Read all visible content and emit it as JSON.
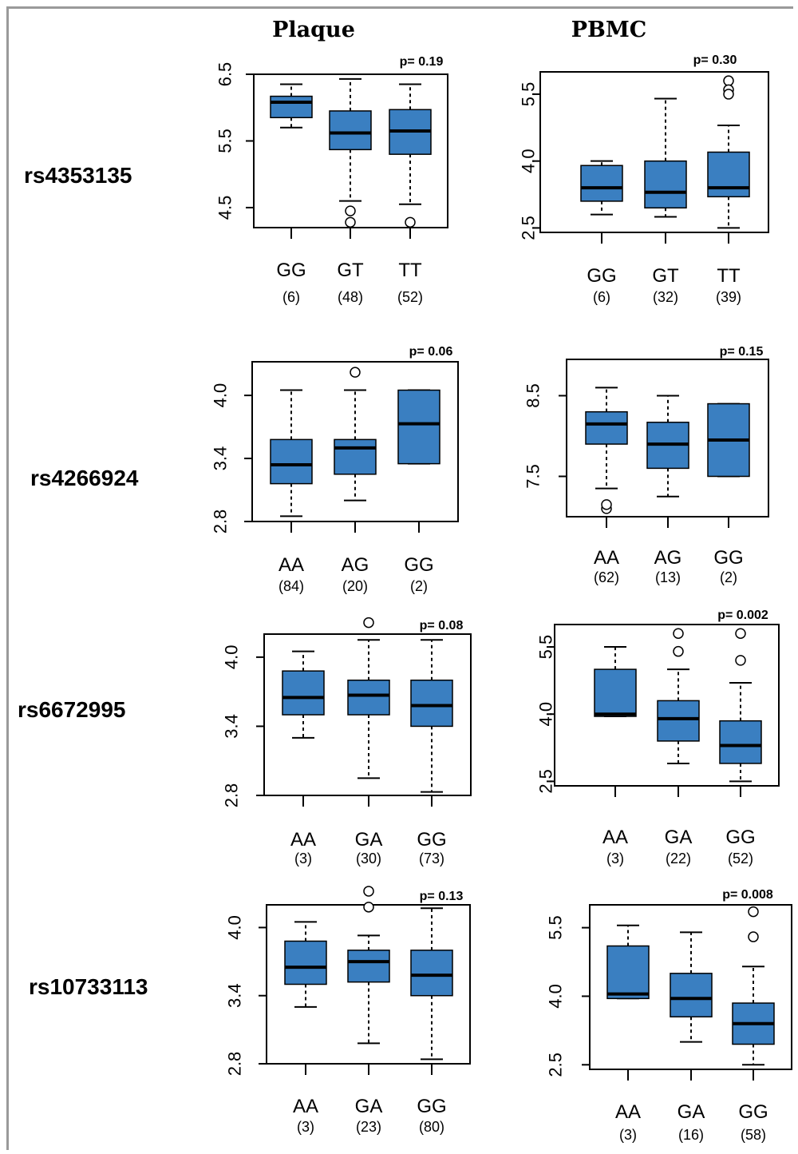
{
  "columns": [
    "Plaque",
    "PBMC"
  ],
  "rows": [
    "rs4353135",
    "rs4266924",
    "rs6672995",
    "rs10733113"
  ],
  "box_color": "#3a7fc1",
  "chart_data": [
    {
      "type": "box",
      "row": "rs4353135",
      "column": "Plaque",
      "p": "p= 0.19",
      "ylim": [
        4.2,
        6.5
      ],
      "yticks": [
        "4.5",
        "5.5",
        "6.5"
      ],
      "groups": [
        {
          "label": "GG",
          "n": "(6)",
          "min": 5.7,
          "q1": 5.85,
          "median": 6.08,
          "q3": 6.17,
          "max": 6.35,
          "outliers": []
        },
        {
          "label": "GT",
          "n": "(48)",
          "min": 4.6,
          "q1": 5.37,
          "median": 5.62,
          "q3": 5.95,
          "max": 6.43,
          "outliers": [
            4.45,
            4.28
          ]
        },
        {
          "label": "TT",
          "n": "(52)",
          "min": 4.55,
          "q1": 5.3,
          "median": 5.65,
          "q3": 5.97,
          "max": 6.35,
          "outliers": [
            4.28
          ]
        }
      ]
    },
    {
      "type": "box",
      "row": "rs4353135",
      "column": "PBMC",
      "p": "p= 0.30",
      "ylim": [
        2.4,
        6.0
      ],
      "yticks": [
        "2.5",
        "4.0",
        "5.5"
      ],
      "groups": [
        {
          "label": "GG",
          "n": "(6)",
          "min": 2.8,
          "q1": 3.1,
          "median": 3.4,
          "q3": 3.9,
          "max": 4.0,
          "outliers": []
        },
        {
          "label": "GT",
          "n": "(32)",
          "min": 2.75,
          "q1": 2.95,
          "median": 3.3,
          "q3": 4.0,
          "max": 5.4,
          "outliers": []
        },
        {
          "label": "TT",
          "n": "(39)",
          "min": 2.5,
          "q1": 3.2,
          "median": 3.4,
          "q3": 4.2,
          "max": 4.8,
          "outliers": [
            5.8,
            5.6,
            5.5
          ]
        }
      ]
    },
    {
      "type": "box",
      "row": "rs4266924",
      "column": "Plaque",
      "p": "p= 0.06",
      "ylim": [
        2.8,
        4.32
      ],
      "yticks": [
        "2.8",
        "3.4",
        "4.0"
      ],
      "groups": [
        {
          "label": "AA",
          "n": "(84)",
          "min": 2.85,
          "q1": 3.16,
          "median": 3.34,
          "q3": 3.58,
          "max": 4.05,
          "outliers": []
        },
        {
          "label": "AG",
          "n": "(20)",
          "min": 3.0,
          "q1": 3.25,
          "median": 3.5,
          "q3": 3.58,
          "max": 4.05,
          "outliers": [
            4.22
          ]
        },
        {
          "label": "GG",
          "n": "(2)",
          "min": 3.35,
          "q1": 3.35,
          "median": 3.73,
          "q3": 4.05,
          "max": 4.05,
          "outliers": []
        }
      ]
    },
    {
      "type": "box",
      "row": "rs4266924",
      "column": "PBMC",
      "p": "p= 0.15",
      "ylim": [
        7.0,
        8.95
      ],
      "yticks": [
        "7.5",
        "8.5"
      ],
      "groups": [
        {
          "label": "AA",
          "n": "(62)",
          "min": 7.35,
          "q1": 7.9,
          "median": 8.15,
          "q3": 8.3,
          "max": 8.6,
          "outliers": [
            7.1,
            7.15
          ]
        },
        {
          "label": "AG",
          "n": "(13)",
          "min": 7.25,
          "q1": 7.6,
          "median": 7.9,
          "q3": 8.17,
          "max": 8.5,
          "outliers": []
        },
        {
          "label": "GG",
          "n": "(2)",
          "min": 7.5,
          "q1": 7.5,
          "median": 7.95,
          "q3": 8.4,
          "max": 8.4,
          "outliers": []
        }
      ]
    },
    {
      "type": "box",
      "row": "rs6672995",
      "column": "Plaque",
      "p": "p= 0.08",
      "ylim": [
        2.8,
        4.2
      ],
      "yticks": [
        "2.8",
        "3.4",
        "4.0"
      ],
      "groups": [
        {
          "label": "AA",
          "n": "(3)",
          "min": 3.3,
          "q1": 3.5,
          "median": 3.65,
          "q3": 3.88,
          "max": 4.05,
          "outliers": []
        },
        {
          "label": "GA",
          "n": "(30)",
          "min": 2.95,
          "q1": 3.5,
          "median": 3.67,
          "q3": 3.8,
          "max": 4.15,
          "outliers": [
            4.3
          ]
        },
        {
          "label": "GG",
          "n": "(73)",
          "min": 2.83,
          "q1": 3.4,
          "median": 3.58,
          "q3": 3.8,
          "max": 4.15,
          "outliers": []
        }
      ]
    },
    {
      "type": "box",
      "row": "rs6672995",
      "column": "PBMC",
      "p": "p= 0.002",
      "ylim": [
        2.4,
        6.0
      ],
      "yticks": [
        "2.5",
        "4.0",
        "5.5"
      ],
      "groups": [
        {
          "label": "AA",
          "n": "(3)",
          "min": 3.95,
          "q1": 3.95,
          "median": 4.0,
          "q3": 5.0,
          "max": 5.5,
          "outliers": []
        },
        {
          "label": "GA",
          "n": "(22)",
          "min": 2.9,
          "q1": 3.4,
          "median": 3.9,
          "q3": 4.3,
          "max": 5.0,
          "outliers": [
            5.8,
            5.4
          ]
        },
        {
          "label": "GG",
          "n": "(52)",
          "min": 2.5,
          "q1": 2.9,
          "median": 3.3,
          "q3": 3.85,
          "max": 4.7,
          "outliers": [
            5.8,
            5.2
          ]
        }
      ]
    },
    {
      "type": "box",
      "row": "rs10733113",
      "column": "Plaque",
      "p": "p= 0.13",
      "ylim": [
        2.8,
        4.2
      ],
      "yticks": [
        "2.8",
        "3.4",
        "4.0"
      ],
      "groups": [
        {
          "label": "AA",
          "n": "(3)",
          "min": 3.3,
          "q1": 3.5,
          "median": 3.65,
          "q3": 3.88,
          "max": 4.05,
          "outliers": []
        },
        {
          "label": "GA",
          "n": "(23)",
          "min": 2.98,
          "q1": 3.52,
          "median": 3.7,
          "q3": 3.8,
          "max": 3.93,
          "outliers": [
            4.32,
            4.18
          ]
        },
        {
          "label": "GG",
          "n": "(80)",
          "min": 2.84,
          "q1": 3.4,
          "median": 3.58,
          "q3": 3.8,
          "max": 4.17,
          "outliers": []
        }
      ]
    },
    {
      "type": "box",
      "row": "rs10733113",
      "column": "PBMC",
      "p": "p= 0.008",
      "ylim": [
        2.4,
        6.0
      ],
      "yticks": [
        "2.5",
        "4.0",
        "5.5"
      ],
      "groups": [
        {
          "label": "AA",
          "n": "(3)",
          "min": 3.95,
          "q1": 3.95,
          "median": 4.05,
          "q3": 5.1,
          "max": 5.55,
          "outliers": []
        },
        {
          "label": "GA",
          "n": "(16)",
          "min": 3.0,
          "q1": 3.55,
          "median": 3.95,
          "q3": 4.5,
          "max": 5.4,
          "outliers": []
        },
        {
          "label": "GG",
          "n": "(58)",
          "min": 2.5,
          "q1": 2.95,
          "median": 3.4,
          "q3": 3.85,
          "max": 4.65,
          "outliers": [
            5.85,
            5.3
          ]
        }
      ]
    }
  ]
}
